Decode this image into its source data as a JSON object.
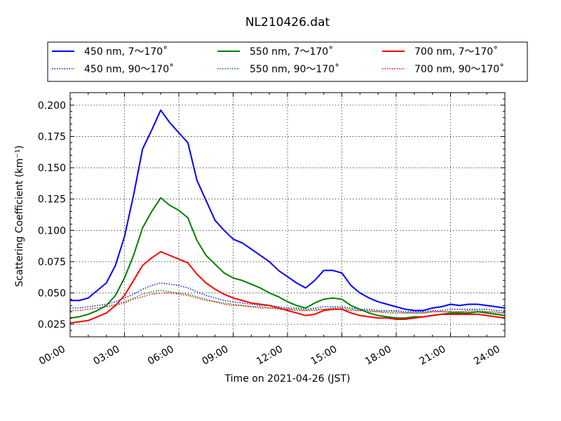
{
  "chart_data": {
    "type": "line",
    "title": "NL210426.dat",
    "xlabel": "Time on 2021-04-26 (JST)",
    "ylabel": "Scattering Coefficient (km⁻¹)",
    "x_unit": "hour",
    "xlim": [
      0,
      24
    ],
    "ylim": [
      0.015,
      0.21
    ],
    "x_ticks": [
      0,
      3,
      6,
      9,
      12,
      15,
      18,
      21,
      24
    ],
    "x_tick_labels": [
      "00:00",
      "03:00",
      "06:00",
      "09:00",
      "12:00",
      "15:00",
      "18:00",
      "21:00",
      "24:00"
    ],
    "y_ticks": [
      0.025,
      0.05,
      0.075,
      0.1,
      0.125,
      0.15,
      0.175,
      0.2
    ],
    "y_tick_labels": [
      "0.025",
      "0.050",
      "0.075",
      "0.100",
      "0.125",
      "0.150",
      "0.175",
      "0.200"
    ],
    "grid": true,
    "legend_position": "top, above plot",
    "legend_columns": 3,
    "x": [
      0,
      0.5,
      1,
      1.5,
      2,
      2.5,
      3,
      3.5,
      4,
      4.5,
      5,
      5.5,
      6,
      6.5,
      7,
      7.5,
      8,
      8.5,
      9,
      9.5,
      10,
      10.5,
      11,
      11.5,
      12,
      12.5,
      13,
      13.5,
      14,
      14.5,
      15,
      15.5,
      16,
      16.5,
      17,
      17.5,
      18,
      18.5,
      19,
      19.5,
      20,
      20.5,
      21,
      21.5,
      22,
      22.5,
      23,
      23.5,
      24
    ],
    "series": [
      {
        "name": "450 nm, 7～170˚",
        "color": "#0000ff",
        "style": "solid",
        "values": [
          0.044,
          0.044,
          0.046,
          0.052,
          0.058,
          0.072,
          0.095,
          0.128,
          0.165,
          0.18,
          0.196,
          0.186,
          0.178,
          0.17,
          0.14,
          0.124,
          0.108,
          0.1,
          0.093,
          0.09,
          0.085,
          0.08,
          0.075,
          0.068,
          0.063,
          0.058,
          0.054,
          0.06,
          0.068,
          0.068,
          0.066,
          0.056,
          0.05,
          0.046,
          0.043,
          0.041,
          0.039,
          0.037,
          0.036,
          0.036,
          0.038,
          0.039,
          0.041,
          0.04,
          0.041,
          0.041,
          0.04,
          0.039,
          0.038
        ]
      },
      {
        "name": "550 nm, 7～170˚",
        "color": "#008000",
        "style": "solid",
        "values": [
          0.03,
          0.031,
          0.033,
          0.036,
          0.04,
          0.048,
          0.062,
          0.08,
          0.102,
          0.115,
          0.126,
          0.12,
          0.116,
          0.11,
          0.092,
          0.08,
          0.073,
          0.066,
          0.062,
          0.06,
          0.057,
          0.054,
          0.05,
          0.047,
          0.043,
          0.04,
          0.038,
          0.042,
          0.045,
          0.046,
          0.045,
          0.04,
          0.037,
          0.034,
          0.032,
          0.031,
          0.03,
          0.03,
          0.031,
          0.031,
          0.032,
          0.033,
          0.034,
          0.034,
          0.034,
          0.035,
          0.034,
          0.033,
          0.032
        ]
      },
      {
        "name": "700 nm, 7～170˚",
        "color": "#ff0000",
        "style": "solid",
        "values": [
          0.026,
          0.027,
          0.028,
          0.031,
          0.034,
          0.04,
          0.048,
          0.06,
          0.072,
          0.078,
          0.083,
          0.08,
          0.077,
          0.074,
          0.065,
          0.058,
          0.053,
          0.049,
          0.046,
          0.044,
          0.042,
          0.041,
          0.04,
          0.038,
          0.036,
          0.034,
          0.032,
          0.033,
          0.036,
          0.037,
          0.037,
          0.034,
          0.032,
          0.031,
          0.03,
          0.03,
          0.029,
          0.029,
          0.03,
          0.031,
          0.032,
          0.033,
          0.033,
          0.033,
          0.033,
          0.033,
          0.032,
          0.031,
          0.03
        ]
      },
      {
        "name": "450 nm, 90～170˚",
        "color": "#0000ff",
        "style": "dotted",
        "values": [
          0.038,
          0.038,
          0.039,
          0.04,
          0.041,
          0.043,
          0.046,
          0.049,
          0.053,
          0.056,
          0.058,
          0.057,
          0.056,
          0.054,
          0.051,
          0.048,
          0.046,
          0.044,
          0.043,
          0.042,
          0.041,
          0.04,
          0.04,
          0.039,
          0.038,
          0.038,
          0.037,
          0.038,
          0.039,
          0.039,
          0.039,
          0.038,
          0.037,
          0.037,
          0.036,
          0.036,
          0.036,
          0.035,
          0.035,
          0.035,
          0.036,
          0.036,
          0.037,
          0.037,
          0.037,
          0.037,
          0.037,
          0.036,
          0.036
        ]
      },
      {
        "name": "550 nm, 90～170˚",
        "color": "#008000",
        "style": "dotted",
        "values": [
          0.036,
          0.036,
          0.037,
          0.038,
          0.039,
          0.041,
          0.043,
          0.046,
          0.049,
          0.051,
          0.052,
          0.051,
          0.05,
          0.049,
          0.047,
          0.045,
          0.043,
          0.042,
          0.041,
          0.04,
          0.039,
          0.039,
          0.038,
          0.038,
          0.037,
          0.037,
          0.036,
          0.037,
          0.037,
          0.038,
          0.038,
          0.037,
          0.036,
          0.036,
          0.035,
          0.035,
          0.035,
          0.034,
          0.034,
          0.034,
          0.035,
          0.035,
          0.035,
          0.035,
          0.036,
          0.036,
          0.035,
          0.035,
          0.034
        ]
      },
      {
        "name": "700 nm, 90～170˚",
        "color": "#ff0000",
        "style": "dotted",
        "values": [
          0.036,
          0.036,
          0.037,
          0.038,
          0.039,
          0.04,
          0.042,
          0.045,
          0.047,
          0.049,
          0.05,
          0.05,
          0.049,
          0.048,
          0.046,
          0.044,
          0.043,
          0.041,
          0.04,
          0.04,
          0.039,
          0.038,
          0.038,
          0.037,
          0.037,
          0.036,
          0.036,
          0.036,
          0.037,
          0.037,
          0.037,
          0.036,
          0.036,
          0.035,
          0.035,
          0.034,
          0.034,
          0.034,
          0.034,
          0.034,
          0.035,
          0.035,
          0.035,
          0.035,
          0.035,
          0.035,
          0.035,
          0.034,
          0.034
        ]
      }
    ]
  }
}
